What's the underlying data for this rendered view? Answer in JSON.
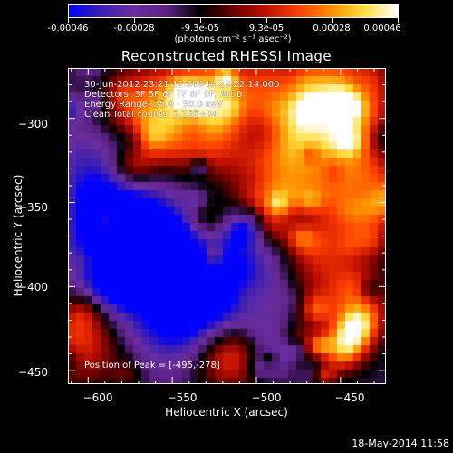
{
  "colorbar": {
    "colormap": [
      "#0000ff",
      "#3b1fb0",
      "#6a2ea0",
      "#5a2080",
      "#000000",
      "#6a0000",
      "#c01000",
      "#ff4000",
      "#ff9000",
      "#ffe040",
      "#ffffff"
    ],
    "tick_labels": [
      "-0.00046",
      "-0.00028",
      "-9.3e-05",
      "9.3e-05",
      "0.00028",
      "0.00046"
    ],
    "units_label": "(photons cm⁻² s⁻¹ asec⁻²)"
  },
  "title": "Reconstructed RHESSI Image",
  "info": {
    "time_range": "30-Jun-2012 23:21:12.000 to 23:22:14.000",
    "detectors": "Detectors: 3F 5F 6F 7F 8F 9F, Att 0",
    "energy": "Energy Range: 25.0 - 50.0 keV",
    "method": "Clean    Total counts: 3.10E+04"
  },
  "peak_label": "Position of Peak = [-495,-278]",
  "x_axis": {
    "label": "Heliocentric X (arcsec)",
    "range": [
      -612,
      -423
    ],
    "ticks": [
      -600,
      -550,
      -500,
      -450
    ],
    "tick_labels": [
      "−600",
      "−550",
      "−500",
      "−450"
    ]
  },
  "y_axis": {
    "label": "Heliocentric Y (arcsec)",
    "range": [
      -458,
      -270
    ],
    "ticks": [
      -300,
      -350,
      -400,
      -450
    ],
    "tick_labels": [
      "−300",
      "−350",
      "−400",
      "−450"
    ]
  },
  "date_stamp": "18-May-2014 11:58"
}
